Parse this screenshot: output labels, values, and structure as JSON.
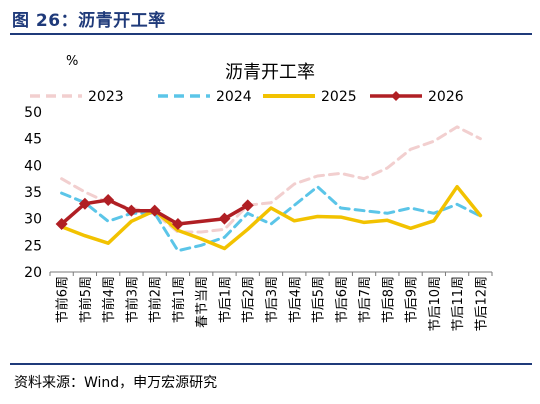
{
  "figure": {
    "title": "图 26：沥青开工率",
    "source": "资料来源：Wind，申万宏源研究",
    "colors": {
      "title": "#1f3a7a"
    }
  },
  "chart_data": {
    "type": "line",
    "title": "沥青开工率",
    "ylabel": "%",
    "xlabel": "",
    "ylim": [
      20,
      50
    ],
    "yticks": [
      20,
      25,
      30,
      35,
      40,
      45,
      50
    ],
    "grid": false,
    "legend_position": "top",
    "categories": [
      "节前6周",
      "节前5周",
      "节前4周",
      "节前3周",
      "节前2周",
      "节前1周",
      "春节当周",
      "节后1周",
      "节后2周",
      "节后3周",
      "节后4周",
      "节后5周",
      "节后6周",
      "节后7周",
      "节后8周",
      "节后9周",
      "节后10周",
      "节后11周",
      "节后12周"
    ],
    "series": [
      {
        "name": "2023",
        "color": "#f2cfcf",
        "style": "dashed",
        "values": [
          37.5,
          35,
          33,
          32,
          31,
          27.5,
          27.5,
          28,
          32.5,
          33,
          36.5,
          38,
          38.5,
          37.5,
          39.5,
          43,
          44.5,
          47.2,
          45
        ]
      },
      {
        "name": "2024",
        "color": "#5bc5e8",
        "style": "dashed",
        "values": [
          34.8,
          33,
          29.5,
          31,
          31,
          24,
          25,
          26.5,
          31,
          29,
          32.5,
          36,
          32,
          31.5,
          31,
          32,
          31,
          32.7,
          30.5
        ]
      },
      {
        "name": "2025",
        "color": "#f2c200",
        "style": "solid",
        "values": [
          28.5,
          26.8,
          25.4,
          29.5,
          31.5,
          27.8,
          26.2,
          24.4,
          28,
          32,
          29.6,
          30.4,
          30.3,
          29.3,
          29.7,
          28.2,
          29.6,
          36,
          30.6
        ]
      },
      {
        "name": "2026",
        "color": "#b01f24",
        "style": "solid-markers",
        "values": [
          29,
          32.8,
          33.5,
          31.5,
          31.5,
          29,
          null,
          30,
          32.5,
          null,
          null,
          null,
          null,
          null,
          null,
          null,
          null,
          null,
          null
        ]
      }
    ]
  }
}
